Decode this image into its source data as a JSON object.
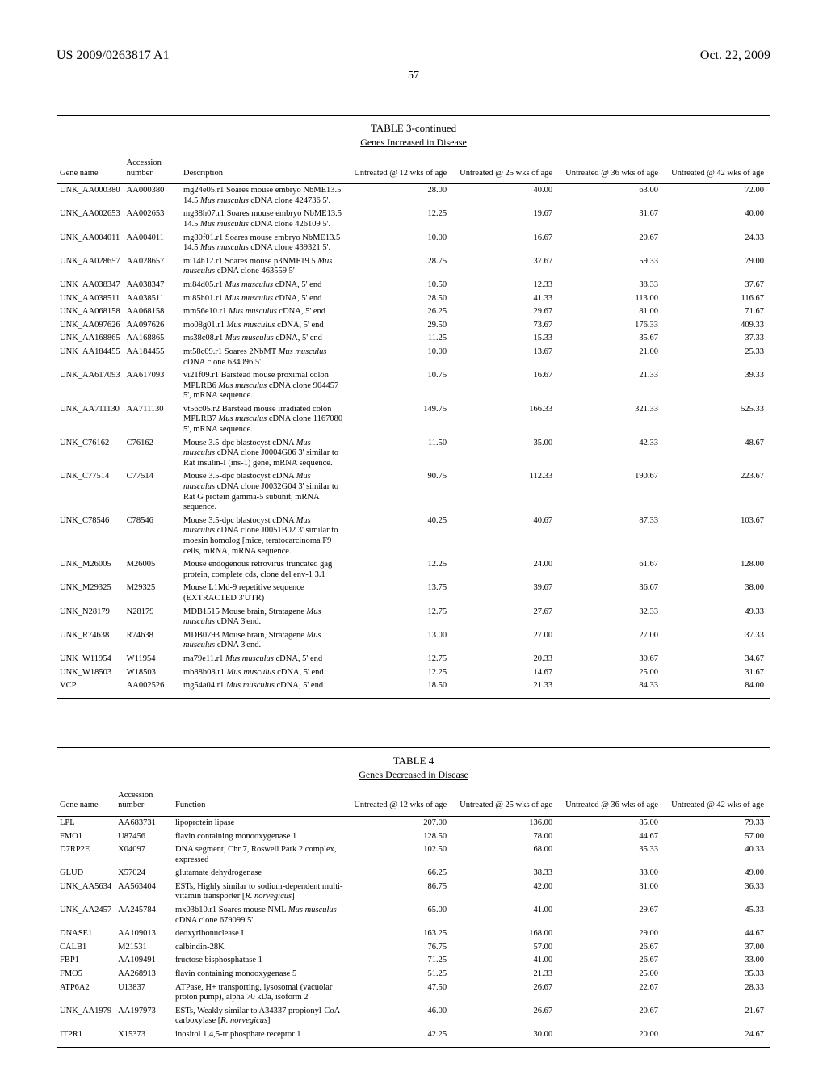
{
  "header": {
    "left": "US 2009/0263817 A1",
    "right": "Oct. 22, 2009",
    "page": "57"
  },
  "table3": {
    "title": "TABLE 3-continued",
    "subtitle": "Genes Increased in Disease",
    "columns": [
      "Gene name",
      "Accession number",
      "Description",
      "Untreated @ 12 wks of age",
      "Untreated @ 25 wks of age",
      "Untreated @ 36 wks of age",
      "Untreated @ 42 wks of age"
    ],
    "rows": [
      {
        "gene": "UNK_AA000380",
        "acc": "AA000380",
        "desc": "mg24e05.r1 Soares mouse embryo NbME13.5 14.5 <i>Mus musculus</i> cDNA clone 424736 5'.",
        "v": [
          "28.00",
          "40.00",
          "63.00",
          "72.00"
        ]
      },
      {
        "gene": "UNK_AA002653",
        "acc": "AA002653",
        "desc": "mg38h07.r1 Soares mouse embryo NbME13.5 14.5 <i>Mus musculus</i> cDNA clone 426109 5'.",
        "v": [
          "12.25",
          "19.67",
          "31.67",
          "40.00"
        ]
      },
      {
        "gene": "UNK_AA004011",
        "acc": "AA004011",
        "desc": "mg80f01.r1 Soares mouse embryo NbME13.5 14.5 <i>Mus musculus</i> cDNA clone 439321 5'.",
        "v": [
          "10.00",
          "16.67",
          "20.67",
          "24.33"
        ]
      },
      {
        "gene": "UNK_AA028657",
        "acc": "AA028657",
        "desc": "mi14h12.r1 Soares mouse p3NMF19.5 <i>Mus musculus</i> cDNA clone 463559 5'",
        "v": [
          "28.75",
          "37.67",
          "59.33",
          "79.00"
        ]
      },
      {
        "gene": "UNK_AA038347",
        "acc": "AA038347",
        "desc": "mi84d05.r1 <i>Mus musculus</i> cDNA, 5' end",
        "v": [
          "10.50",
          "12.33",
          "38.33",
          "37.67"
        ]
      },
      {
        "gene": "UNK_AA038511",
        "acc": "AA038511",
        "desc": "mi85h01.r1 <i>Mus musculus</i> cDNA, 5' end",
        "v": [
          "28.50",
          "41.33",
          "113.00",
          "116.67"
        ]
      },
      {
        "gene": "UNK_AA068158",
        "acc": "AA068158",
        "desc": "mm56e10.r1 <i>Mus musculus</i> cDNA, 5' end",
        "v": [
          "26.25",
          "29.67",
          "81.00",
          "71.67"
        ]
      },
      {
        "gene": "UNK_AA097626",
        "acc": "AA097626",
        "desc": "mo08g01.r1 <i>Mus musculus</i> cDNA, 5' end",
        "v": [
          "29.50",
          "73.67",
          "176.33",
          "409.33"
        ]
      },
      {
        "gene": "UNK_AA168865",
        "acc": "AA168865",
        "desc": "ms38c08.r1 <i>Mus musculus</i> cDNA, 5' end",
        "v": [
          "11.25",
          "15.33",
          "35.67",
          "37.33"
        ]
      },
      {
        "gene": "UNK_AA184455",
        "acc": "AA184455",
        "desc": "mt58c09.r1 Soares 2NbMT <i>Mus musculus</i> cDNA clone 634096 5'",
        "v": [
          "10.00",
          "13.67",
          "21.00",
          "25.33"
        ]
      },
      {
        "gene": "UNK_AA617093",
        "acc": "AA617093",
        "desc": "vi21f09.r1 Barstead mouse proximal colon MPLRB6 <i>Mus musculus</i> cDNA clone 904457 5', mRNA sequence.",
        "v": [
          "10.75",
          "16.67",
          "21.33",
          "39.33"
        ]
      },
      {
        "gene": "UNK_AA711130",
        "acc": "AA711130",
        "desc": "vt56c05.r2 Barstead mouse irradiated colon MPLRB7 <i>Mus musculus</i> cDNA clone 1167080 5', mRNA sequence.",
        "v": [
          "149.75",
          "166.33",
          "321.33",
          "525.33"
        ]
      },
      {
        "gene": "UNK_C76162",
        "acc": "C76162",
        "desc": "Mouse 3.5-dpc blastocyst cDNA <i>Mus musculus</i> cDNA clone J0004G06 3' similar to Rat insulin-I (ins-1) gene, mRNA sequence.",
        "v": [
          "11.50",
          "35.00",
          "42.33",
          "48.67"
        ]
      },
      {
        "gene": "UNK_C77514",
        "acc": "C77514",
        "desc": "Mouse 3.5-dpc blastocyst cDNA <i>Mus musculus</i> cDNA clone J0032G04 3' similar to Rat G protein gamma-5 subunit, mRNA sequence.",
        "v": [
          "90.75",
          "112.33",
          "190.67",
          "223.67"
        ]
      },
      {
        "gene": "UNK_C78546",
        "acc": "C78546",
        "desc": "Mouse 3.5-dpc blastocyst cDNA <i>Mus musculus</i> cDNA clone J0051B02 3' similar to moesin homolog [mice, teratocarcinoma F9 cells, mRNA, mRNA sequence.",
        "v": [
          "40.25",
          "40.67",
          "87.33",
          "103.67"
        ]
      },
      {
        "gene": "UNK_M26005",
        "acc": "M26005",
        "desc": "Mouse endogenous retrovirus truncated gag protein, complete cds, clone del env-1 3.1",
        "v": [
          "12.25",
          "24.00",
          "61.67",
          "128.00"
        ]
      },
      {
        "gene": "UNK_M29325",
        "acc": "M29325",
        "desc": "Mouse L1Md-9 repetitive sequence (EXTRACTED 3'UTR)",
        "v": [
          "13.75",
          "39.67",
          "36.67",
          "38.00"
        ]
      },
      {
        "gene": "UNK_N28179",
        "acc": "N28179",
        "desc": "MDB1515 Mouse brain, Stratagene <i>Mus musculus</i> cDNA 3'end.",
        "v": [
          "12.75",
          "27.67",
          "32.33",
          "49.33"
        ]
      },
      {
        "gene": "UNK_R74638",
        "acc": "R74638",
        "desc": "MDB0793 Mouse brain, Stratagene <i>Mus musculus</i> cDNA 3'end.",
        "v": [
          "13.00",
          "27.00",
          "27.00",
          "37.33"
        ]
      },
      {
        "gene": "UNK_W11954",
        "acc": "W11954",
        "desc": "ma79e11.r1 <i>Mus musculus</i> cDNA, 5' end",
        "v": [
          "12.75",
          "20.33",
          "30.67",
          "34.67"
        ]
      },
      {
        "gene": "UNK_W18503",
        "acc": "W18503",
        "desc": "mb88b08.r1 <i>Mus musculus</i> cDNA, 5' end",
        "v": [
          "12.25",
          "14.67",
          "25.00",
          "31.67"
        ]
      },
      {
        "gene": "VCP",
        "acc": "AA002526",
        "desc": "mg54a04.r1 <i>Mus musculus</i> cDNA, 5' end",
        "v": [
          "18.50",
          "21.33",
          "84.33",
          "84.00"
        ]
      }
    ]
  },
  "table4": {
    "title": "TABLE 4",
    "subtitle": "Genes Decreased in Disease",
    "columns": [
      "Gene name",
      "Accession number",
      "Function",
      "Untreated @ 12 wks of age",
      "Untreated @ 25 wks of age",
      "Untreated @ 36 wks of age",
      "Untreated @ 42 wks of age"
    ],
    "rows": [
      {
        "gene": "LPL",
        "acc": "AA683731",
        "desc": "lipoprotein lipase",
        "v": [
          "207.00",
          "136.00",
          "85.00",
          "79.33"
        ]
      },
      {
        "gene": "FMO1",
        "acc": "U87456",
        "desc": "flavin containing monooxygenase 1",
        "v": [
          "128.50",
          "78.00",
          "44.67",
          "57.00"
        ]
      },
      {
        "gene": "D7RP2E",
        "acc": "X04097",
        "desc": "DNA segment, Chr 7, Roswell Park 2 complex, expressed",
        "v": [
          "102.50",
          "68.00",
          "35.33",
          "40.33"
        ]
      },
      {
        "gene": "GLUD",
        "acc": "X57024",
        "desc": "glutamate dehydrogenase",
        "v": [
          "66.25",
          "38.33",
          "33.00",
          "49.00"
        ]
      },
      {
        "gene": "UNK_AA5634",
        "acc": "AA563404",
        "desc": "ESTs, Highly similar to sodium-dependent multi-vitamin transporter [<i>R. norvegicus</i>]",
        "v": [
          "86.75",
          "42.00",
          "31.00",
          "36.33"
        ]
      },
      {
        "gene": "UNK_AA2457",
        "acc": "AA245784",
        "desc": "mx03b10.r1 Soares mouse NML <i>Mus musculus</i> cDNA clone 679099 5'",
        "v": [
          "65.00",
          "41.00",
          "29.67",
          "45.33"
        ]
      },
      {
        "gene": "DNASE1",
        "acc": "AA109013",
        "desc": "deoxyribonuclease I",
        "v": [
          "163.25",
          "168.00",
          "29.00",
          "44.67"
        ]
      },
      {
        "gene": "CALB1",
        "acc": "M21531",
        "desc": "calbindin-28K",
        "v": [
          "76.75",
          "57.00",
          "26.67",
          "37.00"
        ]
      },
      {
        "gene": "FBP1",
        "acc": "AA109491",
        "desc": "fructose bisphosphatase 1",
        "v": [
          "71.25",
          "41.00",
          "26.67",
          "33.00"
        ]
      },
      {
        "gene": "FMO5",
        "acc": "AA268913",
        "desc": "flavin containing monooxygenase 5",
        "v": [
          "51.25",
          "21.33",
          "25.00",
          "35.33"
        ]
      },
      {
        "gene": "ATP6A2",
        "acc": "U13837",
        "desc": "ATPase, H+ transporting, lysosomal (vacuolar proton pump), alpha 70 kDa, isoform 2",
        "v": [
          "47.50",
          "26.67",
          "22.67",
          "28.33"
        ]
      },
      {
        "gene": "UNK_AA1979",
        "acc": "AA197973",
        "desc": "ESTs, Weakly similar to A34337 propionyl-CoA carboxylase [<i>R. norvegicus</i>]",
        "v": [
          "46.00",
          "26.67",
          "20.67",
          "21.67"
        ]
      },
      {
        "gene": "ITPR1",
        "acc": "X15373",
        "desc": "inositol 1,4,5-triphosphate receptor 1",
        "v": [
          "42.25",
          "30.00",
          "20.00",
          "24.67"
        ]
      }
    ]
  }
}
